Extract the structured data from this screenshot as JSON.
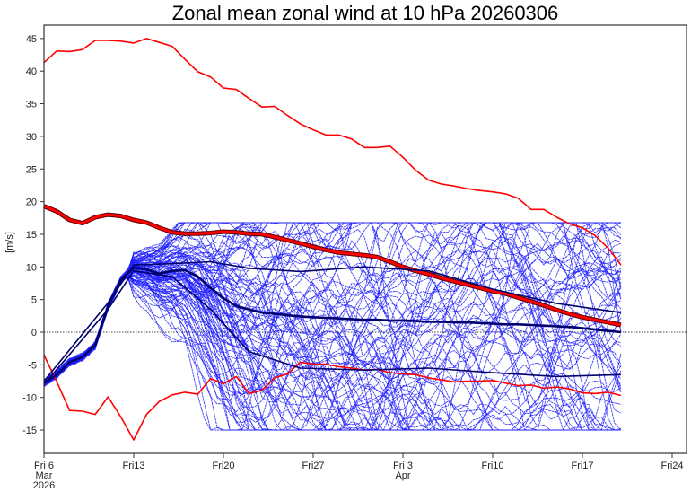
{
  "chart_data": {
    "type": "line",
    "title": "Zonal mean zonal wind at 10 hPa 20260306",
    "ylabel": "[m/s]",
    "xlabel": "",
    "ylim": [
      -18.5,
      47
    ],
    "xlim_days": [
      0,
      49.5
    ],
    "yticks": [
      -15,
      -10,
      -5,
      0,
      5,
      10,
      15,
      20,
      25,
      30,
      35,
      40,
      45
    ],
    "xticks": [
      {
        "day": 0,
        "lines": [
          "Fri 6",
          "Mar",
          "2026"
        ]
      },
      {
        "day": 7,
        "lines": [
          "Fri13"
        ]
      },
      {
        "day": 14,
        "lines": [
          "Fri20"
        ]
      },
      {
        "day": 21,
        "lines": [
          "Fri27"
        ]
      },
      {
        "day": 28,
        "lines": [
          "Fri 3",
          "Apr"
        ]
      },
      {
        "day": 35,
        "lines": [
          "Fri10"
        ]
      },
      {
        "day": 42,
        "lines": [
          "Fri17"
        ]
      },
      {
        "day": 49,
        "lines": [
          "Fri24"
        ]
      }
    ],
    "zero_line": 0,
    "colors": {
      "climatology": "#ff0000",
      "ensemble_member": "#2020ff",
      "ensemble_summary": "#00006e",
      "axis": "#333333"
    },
    "series": [
      {
        "name": "climatology-max",
        "role": "red-thin",
        "x_days": [
          0,
          1,
          2,
          3,
          4,
          5,
          6,
          7,
          8,
          9,
          10,
          11,
          12,
          13,
          14,
          15,
          16,
          17,
          18,
          19,
          20,
          21,
          22,
          23,
          24,
          25,
          26,
          27,
          28,
          29,
          30,
          31,
          32,
          33,
          34,
          35,
          36,
          37,
          38,
          39,
          40,
          41,
          42,
          43,
          44,
          45
        ],
        "values": [
          41.3,
          43.1,
          43.0,
          43.3,
          44.7,
          44.7,
          44.6,
          44.3,
          45.0,
          44.4,
          43.8,
          41.8,
          39.9,
          39.1,
          37.4,
          37.2,
          35.8,
          34.5,
          34.6,
          33.2,
          31.9,
          31.0,
          30.2,
          30.2,
          29.6,
          28.3,
          28.3,
          28.5,
          26.8,
          24.8,
          23.3,
          22.7,
          22.4,
          22.0,
          21.7,
          21.5,
          21.2,
          20.5,
          18.8,
          18.8,
          17.6,
          16.6,
          16.0,
          14.8,
          12.9,
          10.3
        ]
      },
      {
        "name": "climatology-mean",
        "role": "red-thick",
        "x_days": [
          0,
          1,
          2,
          3,
          4,
          5,
          6,
          7,
          8,
          9,
          10,
          11,
          12,
          13,
          14,
          15,
          16,
          17,
          18,
          19,
          20,
          21,
          22,
          23,
          24,
          25,
          26,
          27,
          28,
          29,
          30,
          31,
          32,
          33,
          34,
          35,
          36,
          37,
          38,
          39,
          40,
          41,
          42,
          43,
          44,
          45
        ],
        "values": [
          19.3,
          18.5,
          17.2,
          16.7,
          17.6,
          18.0,
          17.8,
          17.2,
          16.8,
          16.0,
          15.3,
          15.1,
          15.1,
          15.2,
          15.4,
          15.3,
          15.1,
          15.0,
          14.6,
          14.1,
          13.6,
          13.1,
          12.6,
          12.2,
          12.0,
          11.8,
          11.5,
          10.8,
          10.0,
          9.4,
          8.9,
          8.3,
          7.8,
          7.3,
          6.8,
          6.3,
          5.9,
          5.3,
          4.7,
          4.1,
          3.4,
          2.8,
          2.3,
          1.9,
          1.5,
          1.1
        ]
      },
      {
        "name": "climatology-min",
        "role": "red-thin",
        "x_days": [
          0,
          1,
          2,
          3,
          4,
          5,
          6,
          7,
          8,
          9,
          10,
          11,
          12,
          13,
          14,
          15,
          16,
          17,
          18,
          19,
          20,
          21,
          22,
          23,
          24,
          25,
          26,
          27,
          28,
          29,
          30,
          31,
          32,
          33,
          34,
          35,
          36,
          37,
          38,
          39,
          40,
          41,
          42,
          43,
          44,
          45
        ],
        "values": [
          -3.5,
          -7.6,
          -12.0,
          -12.1,
          -12.6,
          -9.9,
          -13.0,
          -16.5,
          -12.6,
          -10.6,
          -9.6,
          -9.2,
          -9.5,
          -7.1,
          -7.9,
          -6.8,
          -9.4,
          -8.9,
          -7.0,
          -6.4,
          -4.6,
          -4.9,
          -4.9,
          -5.3,
          -5.5,
          -5.8,
          -5.7,
          -6.2,
          -6.4,
          -6.5,
          -7.0,
          -7.3,
          -7.6,
          -7.5,
          -7.5,
          -7.4,
          -7.8,
          -8.2,
          -8.1,
          -8.6,
          -8.4,
          -8.7,
          -9.3,
          -9.4,
          -9.2,
          -9.7
        ]
      },
      {
        "name": "ensemble-mean",
        "role": "dark-thick",
        "x_days": [
          0,
          1,
          2,
          3,
          4,
          5,
          6,
          7,
          8,
          9,
          10,
          11,
          12,
          13,
          14,
          15,
          16,
          17,
          18,
          19,
          20,
          21,
          22,
          23,
          24,
          25,
          26,
          27,
          28,
          29,
          30,
          31,
          32,
          33,
          34,
          35,
          36,
          37,
          38,
          39,
          40,
          41,
          42,
          43,
          44,
          45
        ],
        "values": [
          -7.8,
          -6.5,
          -4.6,
          -3.8,
          -2.0,
          4.0,
          8.0,
          9.9,
          9.6,
          9.0,
          9.4,
          9.5,
          8.5,
          6.8,
          5.2,
          4.0,
          3.5,
          3.0,
          2.8,
          2.6,
          2.4,
          2.3,
          2.2,
          2.1,
          2.0,
          1.9,
          1.9,
          1.8,
          1.8,
          1.7,
          1.6,
          1.6,
          1.5,
          1.5,
          1.4,
          1.3,
          1.2,
          1.2,
          1.1,
          1.0,
          0.9,
          0.8,
          0.6,
          0.4,
          0.2,
          0.0
        ]
      },
      {
        "name": "ensemble-upper",
        "role": "dark-thin",
        "x_days": [
          0,
          5,
          7,
          10,
          13,
          16,
          20,
          25,
          30,
          35,
          40,
          45
        ],
        "values": [
          -7.5,
          4.5,
          10.3,
          10.5,
          10.8,
          9.8,
          9.3,
          10.0,
          9.4,
          6.6,
          4.4,
          3.0
        ]
      },
      {
        "name": "ensemble-lower",
        "role": "dark-thin",
        "x_days": [
          0,
          5,
          7,
          10,
          13,
          16,
          20,
          25,
          30,
          35,
          40,
          45
        ],
        "values": [
          -8.0,
          3.5,
          9.4,
          8.5,
          3.5,
          -3.0,
          -5.5,
          -5.8,
          -5.5,
          -6.2,
          -6.8,
          -6.5
        ]
      }
    ],
    "ensemble": {
      "members": 100,
      "x_days_end": 45,
      "spread_start": "Fri13",
      "range_end_values": [
        -14.2,
        7.4
      ]
    }
  }
}
